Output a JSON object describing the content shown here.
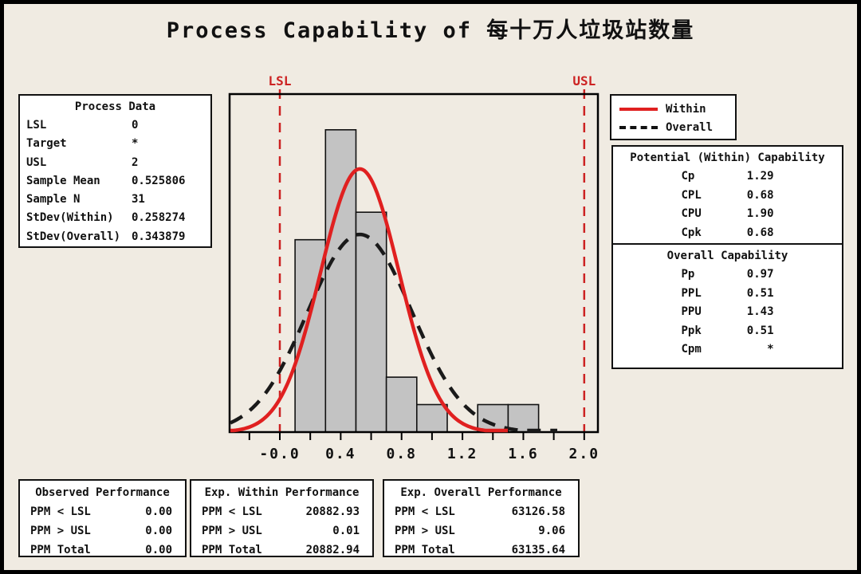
{
  "title": "Process Capability of 每十万人垃圾站数量",
  "process_data": {
    "title": "Process Data",
    "rows": [
      {
        "label": "LSL",
        "value": "0"
      },
      {
        "label": "Target",
        "value": "*"
      },
      {
        "label": "USL",
        "value": "2"
      },
      {
        "label": "Sample Mean",
        "value": "0.525806"
      },
      {
        "label": "Sample N",
        "value": "31"
      },
      {
        "label": "StDev(Within)",
        "value": "0.258274"
      },
      {
        "label": "StDev(Overall)",
        "value": "0.343879"
      }
    ]
  },
  "legend": {
    "items": [
      {
        "label": "Within",
        "color": "#e02020",
        "style": "solid"
      },
      {
        "label": "Overall",
        "color": "#111111",
        "style": "dashed"
      }
    ]
  },
  "capability": {
    "within": {
      "title": "Potential (Within) Capability",
      "rows": [
        {
          "label": "Cp",
          "value": "1.29"
        },
        {
          "label": "CPL",
          "value": "0.68"
        },
        {
          "label": "CPU",
          "value": "1.90"
        },
        {
          "label": "Cpk",
          "value": "0.68"
        }
      ]
    },
    "overall": {
      "title": "Overall Capability",
      "rows": [
        {
          "label": "Pp",
          "value": "0.97"
        },
        {
          "label": "PPL",
          "value": "0.51"
        },
        {
          "label": "PPU",
          "value": "1.43"
        },
        {
          "label": "Ppk",
          "value": "0.51"
        },
        {
          "label": "Cpm",
          "value": "*"
        }
      ]
    }
  },
  "performance": [
    {
      "title": "Observed Performance",
      "rows": [
        {
          "label": "PPM < LSL",
          "value": "0.00"
        },
        {
          "label": "PPM > USL",
          "value": "0.00"
        },
        {
          "label": "PPM Total",
          "value": "0.00"
        }
      ]
    },
    {
      "title": "Exp. Within Performance",
      "rows": [
        {
          "label": "PPM < LSL",
          "value": "20882.93"
        },
        {
          "label": "PPM > USL",
          "value": "0.01"
        },
        {
          "label": "PPM Total",
          "value": "20882.94"
        }
      ]
    },
    {
      "title": "Exp. Overall Performance",
      "rows": [
        {
          "label": "PPM < LSL",
          "value": "63126.58"
        },
        {
          "label": "PPM > USL",
          "value": "9.06"
        },
        {
          "label": "PPM Total",
          "value": "63135.64"
        }
      ]
    }
  ],
  "chart_data": {
    "type": "bar",
    "subtype": "capability-histogram",
    "title": "Process Capability of 每十万人垃圾站数量",
    "bin_start": 0.1,
    "bin_width": 0.2,
    "bin_centers": [
      0.2,
      0.4,
      0.6,
      0.8,
      1.0,
      1.2,
      1.4,
      1.6
    ],
    "counts": [
      7,
      11,
      8,
      2,
      1,
      0,
      1,
      1
    ],
    "sample_n": 31,
    "mean": 0.525806,
    "stdev_within": 0.258274,
    "stdev_overall": 0.343879,
    "lsl": 0,
    "usl": 2,
    "lsl_label": "LSL",
    "usl_label": "USL",
    "curve_halfwidth_sigmas": 3.8,
    "xticks": [
      "-0.0",
      "0.4",
      "0.8",
      "1.2",
      "1.6",
      "2.0"
    ],
    "xtick_values": [
      0,
      0.4,
      0.8,
      1.2,
      1.6,
      2.0
    ],
    "minor_tick_step": 0.2,
    "minor_tick_range": [
      -0.2,
      2.0
    ],
    "xlim": [
      -0.33,
      2.09
    ],
    "ylim_counts": [
      0,
      12.3
    ],
    "grid": false,
    "legend_position": "upper-right-outside",
    "colors": {
      "within": "#e02020",
      "overall": "#1a1a1a",
      "bar_fill": "#c3c3c3",
      "bar_edge": "#111111",
      "spec_line": "#cc2222",
      "background": "#f0ebe2"
    }
  }
}
